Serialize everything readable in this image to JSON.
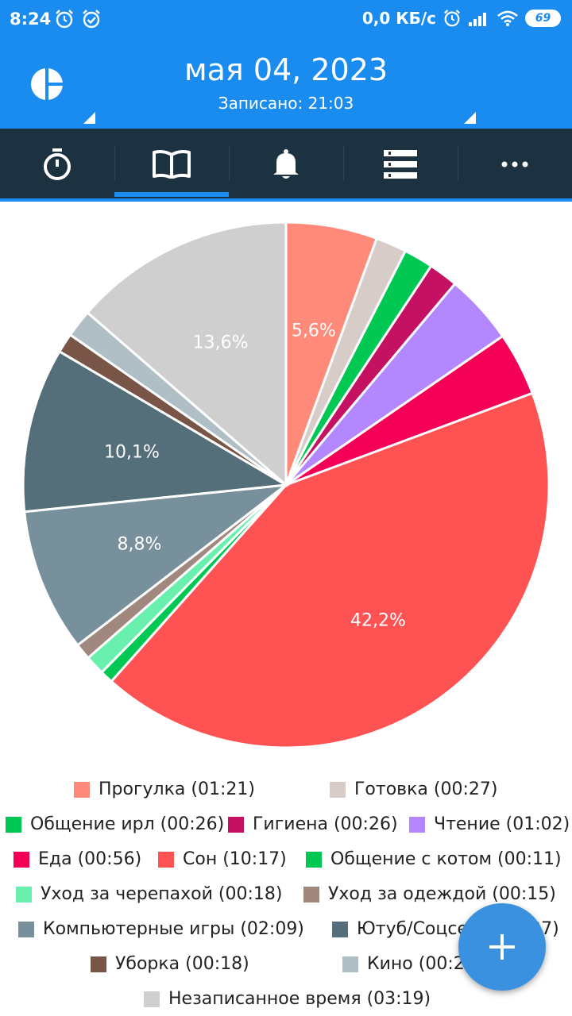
{
  "status": {
    "time": "8:24",
    "speed": "0,0 КБ/с",
    "battery": "69",
    "left_icons": [
      "alarm-icon",
      "check-clock-icon"
    ],
    "right_icons": [
      "alarm-icon",
      "signal-icon",
      "wifi-icon",
      "battery-icon"
    ]
  },
  "header": {
    "date": "мая 04, 2023",
    "recorded": "Записано: 21:03",
    "logo_icon": "pie-chart-logo-icon",
    "accent_color": "#1a8cf0"
  },
  "tabs": [
    {
      "icon": "stopwatch-icon",
      "active": false
    },
    {
      "icon": "book-icon",
      "active": true
    },
    {
      "icon": "bell-icon",
      "active": false
    },
    {
      "icon": "list-icon",
      "active": false
    },
    {
      "icon": "more-dots-icon",
      "active": false
    }
  ],
  "chart_data": {
    "type": "pie",
    "start": "top",
    "direction": "clockwise",
    "slices": [
      {
        "label": "Прогулка (01:21)",
        "value": 5.6,
        "color": "#ff8a7a",
        "pct_label": "5,6%"
      },
      {
        "label": "Готовка (00:27)",
        "value": 1.9,
        "color": "#d7ccc8",
        "pct_label": ""
      },
      {
        "label": "Общение ирл (00:26)",
        "value": 1.8,
        "color": "#00c853",
        "pct_label": ""
      },
      {
        "label": "Гигиена  (00:26)",
        "value": 1.8,
        "color": "#c51162",
        "pct_label": ""
      },
      {
        "label": "Чтение (01:02)",
        "value": 4.3,
        "color": "#b388ff",
        "pct_label": ""
      },
      {
        "label": "Еда (00:56)",
        "value": 3.9,
        "color": "#f50057",
        "pct_label": ""
      },
      {
        "label": "Сон (10:17)",
        "value": 42.2,
        "color": "#ff5252",
        "pct_label": "42,2%"
      },
      {
        "label": "Общение с котом (00:11)",
        "value": 0.8,
        "color": "#00c853",
        "pct_label": ""
      },
      {
        "label": "Уход за черепахой  (00:18)",
        "value": 1.2,
        "color": "#69f0ae",
        "pct_label": ""
      },
      {
        "label": "Уход за одеждой  (00:15)",
        "value": 1.0,
        "color": "#a1887f",
        "pct_label": ""
      },
      {
        "label": "Компьютерные игры  (02:09)",
        "value": 8.8,
        "color": "#78909c",
        "pct_label": "8,8%"
      },
      {
        "label": "Ютуб/Соцсети (02:27)",
        "value": 10.1,
        "color": "#546e7a",
        "pct_label": "10,1%"
      },
      {
        "label": "Уборка (00:18)",
        "value": 1.2,
        "color": "#795548",
        "pct_label": ""
      },
      {
        "label": "Кино (00:24)",
        "value": 1.7,
        "color": "#b0bec5",
        "pct_label": ""
      },
      {
        "label": "Незаписанное время (03:19)",
        "value": 13.6,
        "color": "#cfcfcf",
        "pct_label": "13,6%"
      }
    ]
  },
  "fab": {
    "icon": "plus-icon"
  }
}
